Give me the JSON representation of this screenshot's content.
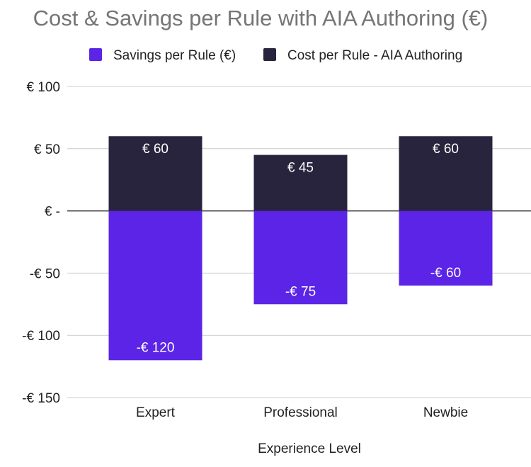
{
  "chart_data": {
    "type": "bar",
    "stacked": true,
    "title": "Cost & Savings per Rule with AIA Authoring (€)",
    "xlabel": "Experience Level",
    "ylabel": "",
    "categories": [
      "Expert",
      "Professional",
      "Newbie"
    ],
    "series": [
      {
        "name": "Savings per Rule  (€)",
        "values": [
          -120,
          -75,
          -60
        ],
        "labels": [
          "-€ 120",
          "-€ 75",
          "-€ 60"
        ],
        "color": "#5b24e6"
      },
      {
        "name": "Cost per Rule - AIA Authoring",
        "values": [
          60,
          45,
          60
        ],
        "labels": [
          "€ 60",
          "€ 45",
          "€ 60"
        ],
        "color": "#28243d"
      }
    ],
    "ylim": [
      -150,
      100
    ],
    "yticks": [
      100,
      50,
      0,
      -50,
      -100,
      -150
    ],
    "ytick_labels": [
      "€ 100",
      "€ 50",
      "€ -",
      "-€ 50",
      "-€ 100",
      "-€ 150"
    ],
    "grid": true,
    "legend": "top"
  }
}
